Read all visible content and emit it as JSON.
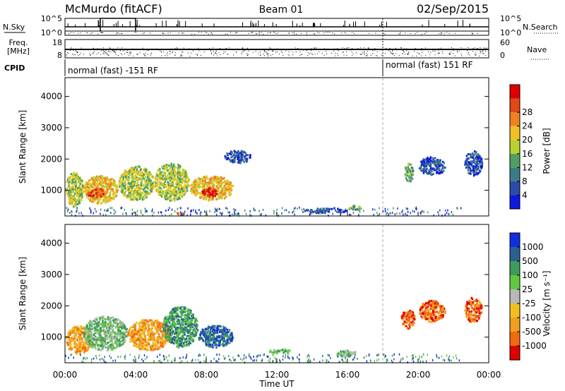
{
  "header": {
    "station": "McMurdo (fitACF)",
    "beam": "Beam 01",
    "date": "02/Sep/2015"
  },
  "strip": {
    "left_label_top": "N.Sky",
    "left_label_freq_line1": "Freq.",
    "left_label_freq_line2": "[MHz]",
    "left_label_cpid": "CPID",
    "right_label_top": "N.Search",
    "right_label_bottom": "Nave",
    "noise_ticks_left": [
      "10^5",
      "10^0"
    ],
    "noise_ticks_right": [
      "10^5",
      "10^0"
    ],
    "freq_ticks": [
      "18",
      "8"
    ],
    "nave_ticks": [
      "60",
      "0"
    ],
    "cpid_segments": [
      {
        "start_hour": 0,
        "end_hour": 18,
        "text": "normal (fast) -151 RF"
      },
      {
        "start_hour": 18,
        "end_hour": 24,
        "text": "normal (fast) 151 RF"
      }
    ]
  },
  "power_scale": {
    "label": "Power [dB]",
    "ticks": [
      "4",
      "8",
      "12",
      "16",
      "20",
      "24",
      "28"
    ],
    "colors": [
      "#1018e0",
      "#2c4aa8",
      "#3c7c8a",
      "#4ea060",
      "#b8d030",
      "#f0c020",
      "#f08020",
      "#e04818",
      "#e00000"
    ]
  },
  "velocity_scale": {
    "label": "Velocity [m s⁻¹]",
    "ticks": [
      "1000",
      "500",
      "100",
      "25",
      "-25",
      "-100",
      "-500",
      "-1000"
    ],
    "colors": [
      "#1030e0",
      "#2c6090",
      "#3e9c5a",
      "#60c840",
      "#b8b8b8",
      "#f0c020",
      "#f0a020",
      "#f06a10",
      "#e00000"
    ]
  },
  "chart_data": {
    "type": "heatmap",
    "x_axis": {
      "label": "Time UT",
      "ticks": [
        "00:00",
        "04:00",
        "08:00",
        "12:00",
        "16:00",
        "20:00",
        "00:00"
      ],
      "range_hours": [
        0,
        24
      ]
    },
    "y_axis": {
      "label": "Slant Range [km]",
      "ticks": [
        1000,
        2000,
        3000,
        4000
      ],
      "range": [
        180,
        4600
      ]
    },
    "cpid_change_hour": 18,
    "power_blobs": [
      {
        "t0": 0.0,
        "t1": 1.0,
        "r0": 500,
        "r1": 1600,
        "level": 4
      },
      {
        "t0": 1.0,
        "t1": 3.0,
        "r0": 600,
        "r1": 1500,
        "level": 5
      },
      {
        "t0": 3.0,
        "t1": 5.0,
        "r0": 700,
        "r1": 1800,
        "level": 4
      },
      {
        "t0": 5.0,
        "t1": 7.0,
        "r0": 700,
        "r1": 1900,
        "level": 4
      },
      {
        "t0": 7.0,
        "t1": 9.5,
        "r0": 700,
        "r1": 1500,
        "level": 5
      },
      {
        "t0": 7.7,
        "t1": 8.6,
        "r0": 800,
        "r1": 1100,
        "level": 8
      },
      {
        "t0": 1.2,
        "t1": 2.2,
        "r0": 800,
        "r1": 1100,
        "level": 7
      },
      {
        "t0": 6.3,
        "t1": 6.8,
        "r0": 250,
        "r1": 330,
        "level": 7
      },
      {
        "t0": 9.0,
        "t1": 10.5,
        "r0": 1900,
        "r1": 2300,
        "level": 1
      },
      {
        "t0": 13.5,
        "t1": 16.0,
        "r0": 300,
        "r1": 450,
        "level": 1
      },
      {
        "t0": 16.0,
        "t1": 16.8,
        "r0": 400,
        "r1": 550,
        "level": 3
      },
      {
        "t0": 19.2,
        "t1": 19.7,
        "r0": 1300,
        "r1": 1900,
        "level": 3
      },
      {
        "t0": 20.0,
        "t1": 21.5,
        "r0": 1500,
        "r1": 2100,
        "level": 1
      },
      {
        "t0": 22.6,
        "t1": 23.6,
        "r0": 1500,
        "r1": 2300,
        "level": 1
      }
    ],
    "velocity_blobs": [
      {
        "t0": 0.0,
        "t1": 1.5,
        "r0": 500,
        "r1": 1400,
        "level": 6
      },
      {
        "t0": 1.0,
        "t1": 3.5,
        "r0": 600,
        "r1": 1700,
        "level": 3
      },
      {
        "t0": 3.5,
        "t1": 6.0,
        "r0": 600,
        "r1": 1600,
        "level": 6
      },
      {
        "t0": 5.5,
        "t1": 7.5,
        "r0": 700,
        "r1": 2000,
        "level": 2
      },
      {
        "t0": 7.5,
        "t1": 9.5,
        "r0": 700,
        "r1": 1400,
        "level": 1
      },
      {
        "t0": 11.5,
        "t1": 12.8,
        "r0": 500,
        "r1": 650,
        "level": 3
      },
      {
        "t0": 15.2,
        "t1": 16.5,
        "r0": 400,
        "r1": 600,
        "level": 3
      },
      {
        "t0": 19.0,
        "t1": 19.8,
        "r0": 1300,
        "r1": 1900,
        "level": 7
      },
      {
        "t0": 20.0,
        "t1": 21.5,
        "r0": 1500,
        "r1": 2200,
        "level": 7
      },
      {
        "t0": 22.6,
        "t1": 23.6,
        "r0": 1500,
        "r1": 2300,
        "level": 7
      }
    ]
  }
}
